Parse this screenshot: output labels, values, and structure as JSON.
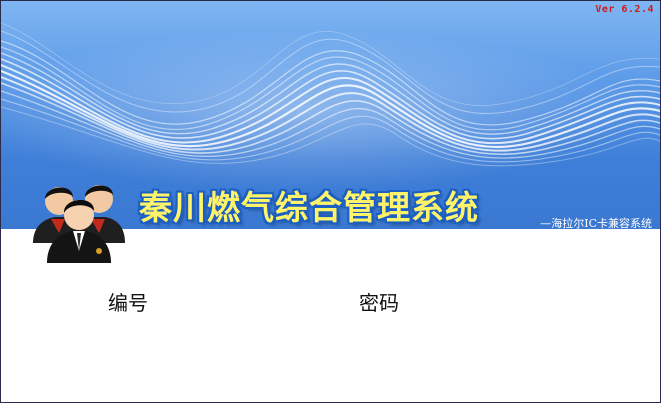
{
  "version": "Ver 6.2.4",
  "title": "秦川燃气综合管理系统",
  "subtitle": "—海拉尔IC卡兼容系统",
  "form": {
    "user_id_label": "编号",
    "password_label": "密码"
  },
  "icons": {
    "users": "users-group-icon"
  },
  "colors": {
    "banner_top": "#7fb6f2",
    "banner_bottom": "#3a78d2",
    "title_fill": "#fff36a",
    "title_outline": "#1c5fc4",
    "version_text": "#d01818"
  }
}
